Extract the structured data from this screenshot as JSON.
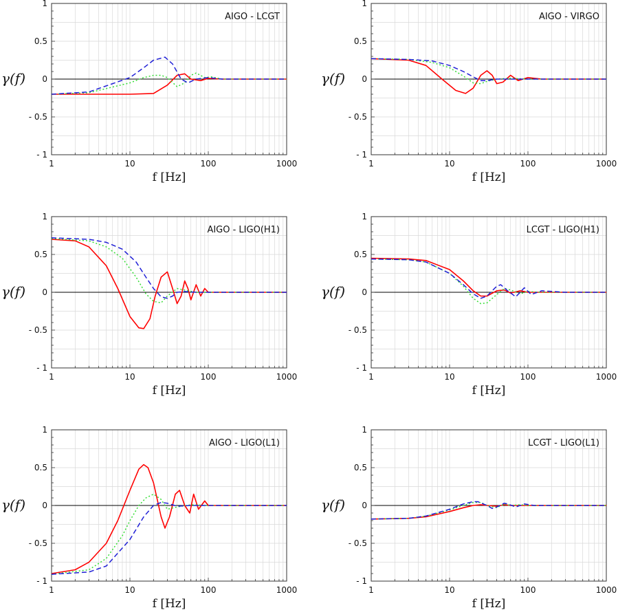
{
  "figure": {
    "xlabel": "f [Hz]",
    "ylabel": "γ(f)",
    "xscale": "log",
    "xlim": [
      1,
      1000
    ],
    "ylim": [
      -1,
      1
    ],
    "x_ticks": [
      1,
      10,
      100,
      1000
    ],
    "x_tick_labels": [
      "1",
      "10",
      "100",
      "1000"
    ],
    "y_ticks": [
      -1,
      -0.5,
      0,
      0.5,
      1
    ],
    "y_tick_labels": [
      "- 1",
      "- 0.5",
      "0",
      "0.5",
      "1"
    ],
    "grid": true,
    "colors": {
      "solid": "#ff0000",
      "dotted": "#33dd33",
      "dashed": "#1f1fd6",
      "zero_line": "#000000",
      "grid": "#d8d8d8"
    },
    "line_styles": [
      "solid",
      "dotted",
      "dashed"
    ]
  },
  "chart_data": [
    {
      "type": "line",
      "title": "AIGO - LCGT",
      "xscale": "log",
      "xlim": [
        1,
        1000
      ],
      "ylim": [
        -1,
        1
      ],
      "series": [
        {
          "style": "solid",
          "x": [
            1,
            3,
            10,
            20,
            30,
            40,
            50,
            60,
            80,
            100,
            150,
            300,
            1000
          ],
          "y": [
            -0.2,
            -0.2,
            -0.2,
            -0.19,
            -0.08,
            0.05,
            0.07,
            0.0,
            -0.02,
            0.01,
            0.0,
            0.0,
            0.0
          ]
        },
        {
          "style": "dotted",
          "x": [
            1,
            3,
            10,
            15,
            20,
            25,
            30,
            40,
            50,
            60,
            70,
            90,
            110,
            150,
            300,
            1000
          ],
          "y": [
            -0.2,
            -0.18,
            -0.05,
            0.02,
            0.05,
            0.05,
            0.02,
            -0.1,
            -0.05,
            0.05,
            0.08,
            0.02,
            0.03,
            0.0,
            0.0,
            0.0
          ]
        },
        {
          "style": "dashed",
          "x": [
            1,
            3,
            10,
            15,
            20,
            28,
            35,
            45,
            55,
            70,
            100,
            150,
            300,
            1000
          ],
          "y": [
            -0.2,
            -0.17,
            0.02,
            0.15,
            0.25,
            0.29,
            0.2,
            0.0,
            -0.05,
            0.0,
            0.02,
            0.0,
            0.0,
            0.0
          ]
        }
      ]
    },
    {
      "type": "line",
      "title": "AIGO - VIRGO",
      "xscale": "log",
      "xlim": [
        1,
        1000
      ],
      "ylim": [
        -1,
        1
      ],
      "series": [
        {
          "style": "solid",
          "x": [
            1,
            3,
            5,
            8,
            12,
            16,
            20,
            25,
            30,
            35,
            40,
            48,
            60,
            75,
            100,
            150,
            300,
            1000
          ],
          "y": [
            0.27,
            0.25,
            0.18,
            0.0,
            -0.15,
            -0.19,
            -0.12,
            0.05,
            0.11,
            0.05,
            -0.06,
            -0.04,
            0.05,
            -0.02,
            0.02,
            0.0,
            0.0,
            0.0
          ]
        },
        {
          "style": "dotted",
          "x": [
            1,
            3,
            6,
            10,
            15,
            20,
            25,
            30,
            40,
            60,
            100,
            1000
          ],
          "y": [
            0.27,
            0.26,
            0.22,
            0.15,
            0.04,
            -0.05,
            -0.06,
            -0.03,
            0.0,
            0.01,
            0.0,
            0.0
          ]
        },
        {
          "style": "dashed",
          "x": [
            1,
            3,
            6,
            10,
            15,
            20,
            25,
            30,
            40,
            60,
            100,
            1000
          ],
          "y": [
            0.27,
            0.26,
            0.24,
            0.18,
            0.1,
            0.03,
            -0.02,
            -0.02,
            0.0,
            0.0,
            0.0,
            0.0
          ]
        }
      ]
    },
    {
      "type": "line",
      "title": "AIGO - LIGO(H1)",
      "xscale": "log",
      "xlim": [
        1,
        1000
      ],
      "ylim": [
        -1,
        1
      ],
      "series": [
        {
          "style": "solid",
          "x": [
            1,
            2,
            3,
            5,
            7,
            10,
            13,
            15,
            18,
            21,
            25,
            30,
            35,
            40,
            45,
            50,
            55,
            60,
            70,
            80,
            90,
            100,
            150,
            300,
            1000
          ],
          "y": [
            0.7,
            0.68,
            0.6,
            0.35,
            0.05,
            -0.32,
            -0.47,
            -0.48,
            -0.35,
            -0.05,
            0.2,
            0.27,
            0.05,
            -0.15,
            -0.05,
            0.15,
            0.05,
            -0.1,
            0.1,
            -0.05,
            0.05,
            0.0,
            0.0,
            0.0,
            0.0
          ]
        },
        {
          "style": "dotted",
          "x": [
            1,
            3,
            5,
            8,
            12,
            16,
            20,
            25,
            30,
            40,
            55,
            70,
            100,
            1000
          ],
          "y": [
            0.71,
            0.68,
            0.6,
            0.45,
            0.2,
            -0.02,
            -0.12,
            -0.14,
            -0.05,
            0.05,
            0.02,
            0.0,
            0.0,
            0.0
          ]
        },
        {
          "style": "dashed",
          "x": [
            1,
            3,
            5,
            8,
            12,
            16,
            20,
            25,
            30,
            35,
            40,
            50,
            70,
            100,
            1000
          ],
          "y": [
            0.72,
            0.7,
            0.66,
            0.57,
            0.4,
            0.2,
            0.05,
            -0.06,
            -0.08,
            -0.05,
            0.0,
            0.01,
            0.0,
            0.0,
            0.0
          ]
        }
      ]
    },
    {
      "type": "line",
      "title": "LCGT - LIGO(H1)",
      "xscale": "log",
      "xlim": [
        1,
        1000
      ],
      "ylim": [
        -1,
        1
      ],
      "series": [
        {
          "style": "solid",
          "x": [
            1,
            3,
            5,
            10,
            15,
            20,
            25,
            30,
            40,
            50,
            60,
            80,
            100,
            150,
            300,
            1000
          ],
          "y": [
            0.45,
            0.44,
            0.42,
            0.3,
            0.15,
            0.02,
            -0.05,
            -0.05,
            0.02,
            0.03,
            -0.01,
            0.02,
            0.0,
            0.0,
            0.0,
            0.0
          ]
        },
        {
          "style": "dotted",
          "x": [
            1,
            3,
            5,
            10,
            15,
            20,
            25,
            30,
            40,
            50,
            60,
            80,
            100,
            150,
            300,
            1000
          ],
          "y": [
            0.44,
            0.43,
            0.4,
            0.25,
            0.08,
            -0.08,
            -0.15,
            -0.14,
            -0.03,
            0.05,
            0.03,
            -0.02,
            0.01,
            0.0,
            0.0,
            0.0
          ]
        },
        {
          "style": "dashed",
          "x": [
            1,
            3,
            5,
            10,
            15,
            20,
            25,
            30,
            40,
            45,
            55,
            70,
            90,
            110,
            150,
            300,
            1000
          ],
          "y": [
            0.44,
            0.43,
            0.4,
            0.25,
            0.1,
            -0.02,
            -0.08,
            -0.05,
            0.08,
            0.1,
            0.02,
            -0.06,
            0.06,
            -0.03,
            0.02,
            0.0,
            0.0
          ]
        }
      ]
    },
    {
      "type": "line",
      "title": "AIGO - LIGO(L1)",
      "xscale": "log",
      "xlim": [
        1,
        1000
      ],
      "ylim": [
        -1,
        1
      ],
      "series": [
        {
          "style": "solid",
          "x": [
            1,
            2,
            3,
            5,
            7,
            10,
            13,
            15,
            17,
            20,
            25,
            28,
            32,
            38,
            43,
            50,
            58,
            65,
            75,
            90,
            100,
            150,
            300,
            1000
          ],
          "y": [
            -0.9,
            -0.85,
            -0.75,
            -0.5,
            -0.2,
            0.2,
            0.48,
            0.54,
            0.5,
            0.3,
            -0.15,
            -0.3,
            -0.15,
            0.15,
            0.2,
            0.0,
            -0.1,
            0.15,
            -0.05,
            0.06,
            0.0,
            0.0,
            0.0,
            0.0
          ]
        },
        {
          "style": "dotted",
          "x": [
            1,
            3,
            5,
            8,
            10,
            13,
            16,
            20,
            25,
            30,
            40,
            60,
            100,
            1000
          ],
          "y": [
            -0.91,
            -0.85,
            -0.7,
            -0.4,
            -0.2,
            0.0,
            0.1,
            0.15,
            0.08,
            -0.05,
            -0.02,
            0.01,
            0.0,
            0.0
          ]
        },
        {
          "style": "dashed",
          "x": [
            1,
            3,
            5,
            10,
            15,
            20,
            25,
            30,
            40,
            60,
            100,
            1000
          ],
          "y": [
            -0.91,
            -0.88,
            -0.8,
            -0.45,
            -0.15,
            0.0,
            0.04,
            0.03,
            -0.01,
            0.0,
            0.0,
            0.0
          ]
        }
      ]
    },
    {
      "type": "line",
      "title": "LCGT - LIGO(L1)",
      "xscale": "log",
      "xlim": [
        1,
        1000
      ],
      "ylim": [
        -1,
        1
      ],
      "series": [
        {
          "style": "solid",
          "x": [
            1,
            3,
            5,
            10,
            15,
            20,
            25,
            30,
            40,
            50,
            60,
            80,
            100,
            1000
          ],
          "y": [
            -0.18,
            -0.17,
            -0.15,
            -0.08,
            -0.03,
            0.0,
            0.01,
            0.0,
            -0.01,
            0.01,
            0.0,
            0.0,
            0.0,
            0.0
          ]
        },
        {
          "style": "dotted",
          "x": [
            1,
            3,
            5,
            10,
            15,
            20,
            25,
            30,
            40,
            50,
            60,
            80,
            100,
            1000
          ],
          "y": [
            -0.18,
            -0.17,
            -0.14,
            -0.06,
            0.0,
            0.04,
            0.04,
            0.0,
            -0.03,
            0.02,
            0.0,
            0.01,
            0.0,
            0.0
          ]
        },
        {
          "style": "dashed",
          "x": [
            1,
            3,
            5,
            10,
            15,
            20,
            23,
            30,
            35,
            40,
            50,
            55,
            70,
            90,
            120,
            1000
          ],
          "y": [
            -0.18,
            -0.17,
            -0.14,
            -0.05,
            0.02,
            0.05,
            0.05,
            0.0,
            -0.04,
            -0.02,
            0.03,
            0.02,
            -0.02,
            0.02,
            0.0,
            0.0
          ]
        }
      ]
    }
  ]
}
